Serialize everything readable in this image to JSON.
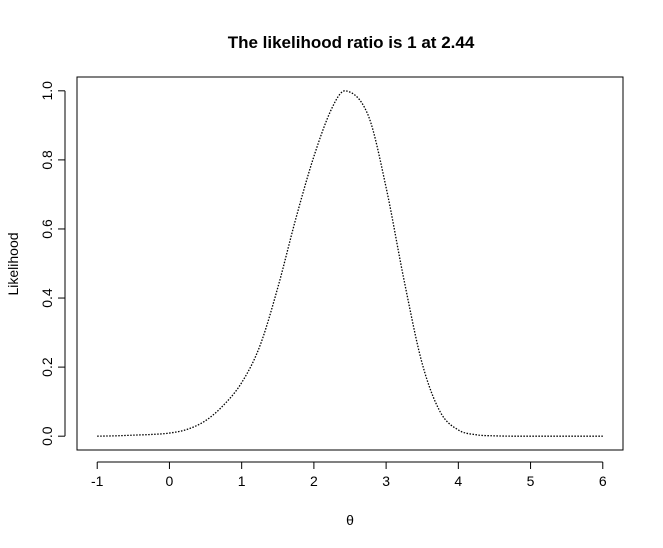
{
  "chart_data": {
    "type": "line",
    "title": "The likelihood ratio is 1 at 2.44",
    "xlabel": "θ",
    "ylabel": "Likelihood",
    "xlim": [
      -1.28,
      6.28
    ],
    "ylim": [
      -0.04,
      1.04
    ],
    "xticks": [
      "-1",
      "0",
      "1",
      "2",
      "3",
      "4",
      "5",
      "6"
    ],
    "xtick_values": [
      -1,
      0,
      1,
      2,
      3,
      4,
      5,
      6
    ],
    "yticks": [
      "0.0",
      "0.2",
      "0.4",
      "0.6",
      "0.8",
      "1.0"
    ],
    "ytick_values": [
      0,
      0.2,
      0.4,
      0.6,
      0.8,
      1.0
    ],
    "grid": false,
    "line_style": "dotted",
    "line_color": "#000000",
    "series": [
      {
        "x": [
          -1.0,
          -0.75,
          -0.5,
          -0.25,
          0.0,
          0.25,
          0.5,
          0.75,
          1.0,
          1.25,
          1.5,
          1.75,
          2.0,
          2.25,
          2.44,
          2.75,
          3.0,
          3.25,
          3.5,
          3.75,
          4.0,
          4.25,
          4.5,
          4.75,
          5.0,
          5.5,
          6.0
        ],
        "y": [
          0.0,
          0.001,
          0.003,
          0.005,
          0.009,
          0.02,
          0.045,
          0.09,
          0.155,
          0.26,
          0.43,
          0.63,
          0.81,
          0.95,
          1.0,
          0.93,
          0.72,
          0.45,
          0.21,
          0.07,
          0.018,
          0.004,
          0.001,
          0.0,
          0.0,
          0.0,
          0.0
        ]
      }
    ]
  }
}
